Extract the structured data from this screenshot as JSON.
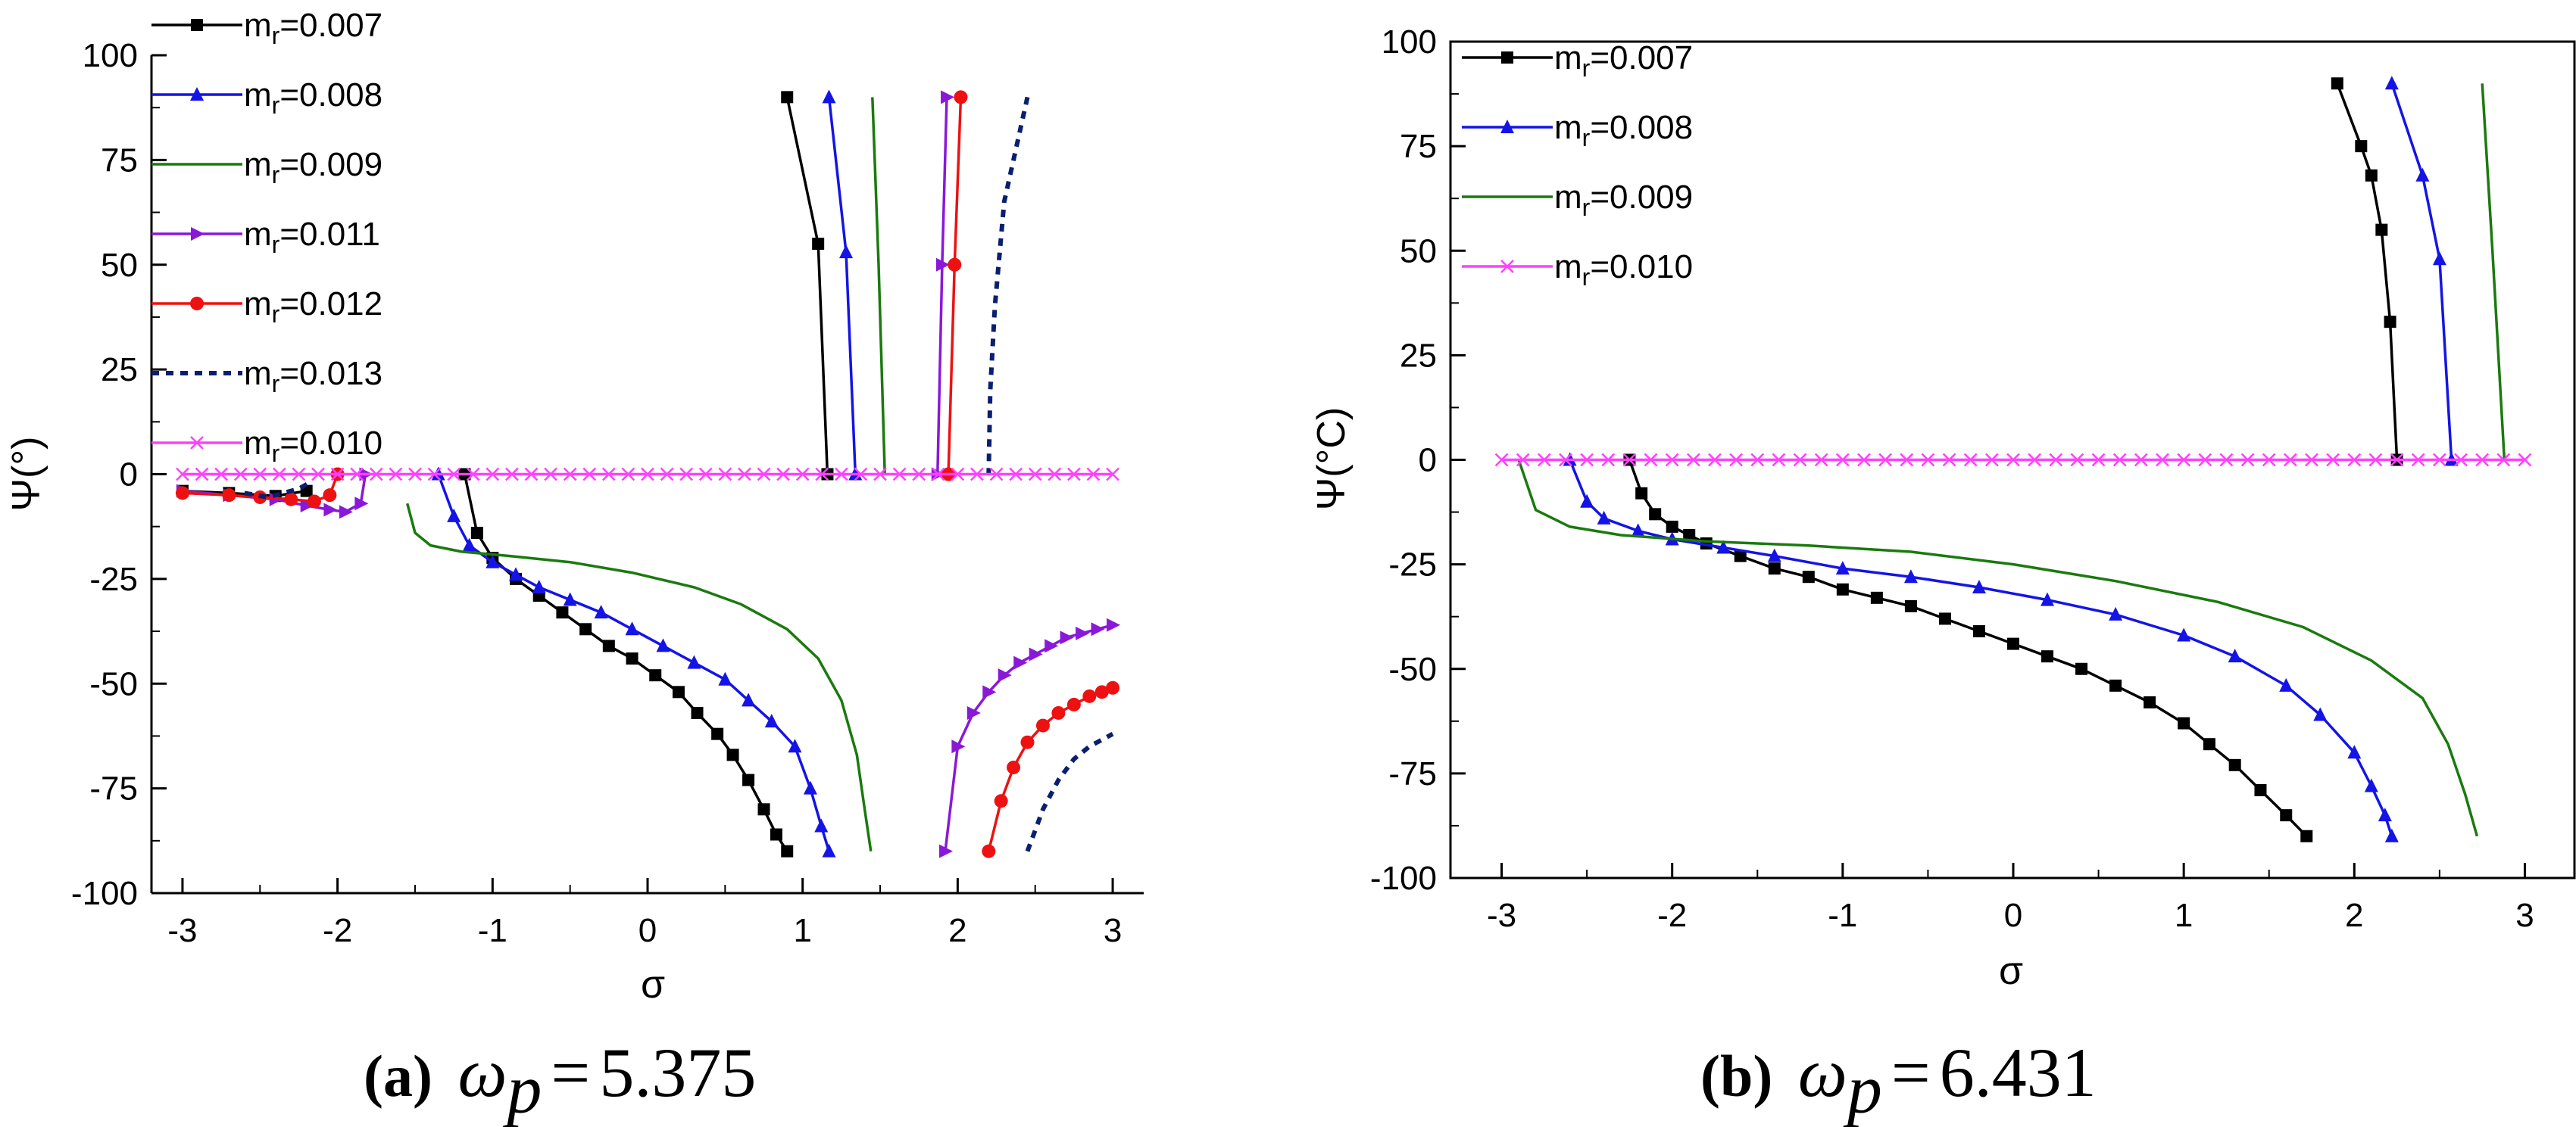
{
  "chart_data": [
    {
      "type": "line",
      "panel": "a",
      "caption": {
        "label": "(a)",
        "symbol": "ω",
        "subscript": "p",
        "equals": "=",
        "value": "5.375"
      },
      "xlabel": "σ",
      "ylabel": "Ψ(°)",
      "xlim": [
        -3.2,
        3.2
      ],
      "ylim": [
        -100,
        100
      ],
      "xticks": [
        -3,
        -2,
        -1,
        0,
        1,
        2,
        3
      ],
      "yticks": [
        100,
        75,
        50,
        25,
        0,
        -25,
        -50,
        -75,
        -100
      ],
      "legend_position": "top-left",
      "series": [
        {
          "name": "m",
          "sub": "r",
          "value": "=0.007",
          "color": "#000000",
          "marker": "square",
          "dash": "",
          "segments": [
            [
              [
                0.9,
                90
              ],
              [
                1.1,
                55
              ],
              [
                1.16,
                0
              ]
            ],
            [
              [
                -3.0,
                -4
              ],
              [
                -2.7,
                -4.5
              ],
              [
                -2.4,
                -5.2
              ],
              [
                -2.2,
                -4
              ]
            ],
            [
              [
                -1.18,
                0
              ],
              [
                -1.1,
                -14
              ],
              [
                -1.0,
                -20
              ],
              [
                -0.85,
                -25
              ],
              [
                -0.7,
                -29
              ],
              [
                -0.55,
                -33
              ],
              [
                -0.4,
                -37
              ],
              [
                -0.25,
                -41
              ],
              [
                -0.1,
                -44
              ],
              [
                0.05,
                -48
              ],
              [
                0.2,
                -52
              ],
              [
                0.32,
                -57
              ],
              [
                0.45,
                -62
              ],
              [
                0.55,
                -67
              ],
              [
                0.65,
                -73
              ],
              [
                0.75,
                -80
              ],
              [
                0.83,
                -86
              ],
              [
                0.9,
                -90
              ]
            ]
          ]
        },
        {
          "name": "m",
          "sub": "r",
          "value": "=0.008",
          "color": "#1414e6",
          "marker": "triangle",
          "dash": "",
          "segments": [
            [
              [
                1.17,
                90
              ],
              [
                1.28,
                53
              ],
              [
                1.34,
                0
              ]
            ],
            [
              [
                -1.35,
                0
              ],
              [
                -1.25,
                -10
              ],
              [
                -1.15,
                -17
              ],
              [
                -1.0,
                -21
              ],
              [
                -0.85,
                -24
              ],
              [
                -0.7,
                -27
              ],
              [
                -0.5,
                -30
              ],
              [
                -0.3,
                -33
              ],
              [
                -0.1,
                -37
              ],
              [
                0.1,
                -41
              ],
              [
                0.3,
                -45
              ],
              [
                0.5,
                -49
              ],
              [
                0.65,
                -54
              ],
              [
                0.8,
                -59
              ],
              [
                0.95,
                -65
              ],
              [
                1.05,
                -75
              ],
              [
                1.12,
                -84
              ],
              [
                1.17,
                -90
              ]
            ]
          ]
        },
        {
          "name": "m",
          "sub": "r",
          "value": "=0.009",
          "color": "#1a7a0e",
          "marker": "none",
          "dash": "",
          "segments": [
            [
              [
                1.45,
                90
              ],
              [
                1.49,
                50
              ],
              [
                1.53,
                0
              ]
            ],
            [
              [
                -1.55,
                -7
              ],
              [
                -1.5,
                -14
              ],
              [
                -1.4,
                -17
              ],
              [
                -1.2,
                -18.5
              ],
              [
                -0.9,
                -19.5
              ],
              [
                -0.5,
                -21
              ],
              [
                -0.1,
                -23.5
              ],
              [
                0.3,
                -27
              ],
              [
                0.6,
                -31
              ],
              [
                0.9,
                -37
              ],
              [
                1.1,
                -44
              ],
              [
                1.25,
                -54
              ],
              [
                1.35,
                -67
              ],
              [
                1.4,
                -80
              ],
              [
                1.44,
                -90
              ]
            ]
          ]
        },
        {
          "name": "m",
          "sub": "r",
          "value": "=0.011",
          "color": "#8a18d8",
          "marker": "triangle-right",
          "dash": "",
          "segments": [
            [
              [
                1.93,
                90
              ],
              [
                1.9,
                50
              ],
              [
                1.87,
                0
              ]
            ],
            [
              [
                -3.0,
                -4
              ],
              [
                -2.7,
                -5
              ],
              [
                -2.4,
                -6
              ],
              [
                -2.2,
                -7.5
              ],
              [
                -2.05,
                -8.5
              ],
              [
                -1.95,
                -9
              ],
              [
                -1.85,
                -7
              ],
              [
                -1.82,
                0
              ]
            ],
            [
              [
                1.92,
                -90
              ],
              [
                2.0,
                -65
              ],
              [
                2.1,
                -57
              ],
              [
                2.2,
                -52
              ],
              [
                2.3,
                -48
              ],
              [
                2.4,
                -45
              ],
              [
                2.5,
                -43
              ],
              [
                2.6,
                -41
              ],
              [
                2.7,
                -39
              ],
              [
                2.8,
                -38
              ],
              [
                2.9,
                -37
              ],
              [
                3.0,
                -36
              ]
            ]
          ]
        },
        {
          "name": "m",
          "sub": "r",
          "value": "=0.012",
          "color": "#ee1111",
          "marker": "circle",
          "dash": "",
          "segments": [
            [
              [
                2.02,
                90
              ],
              [
                1.98,
                50
              ],
              [
                1.94,
                0
              ]
            ],
            [
              [
                -3.0,
                -4.5
              ],
              [
                -2.7,
                -5
              ],
              [
                -2.5,
                -5.5
              ],
              [
                -2.3,
                -6
              ],
              [
                -2.15,
                -6.5
              ],
              [
                -2.05,
                -5
              ],
              [
                -2.0,
                0
              ]
            ],
            [
              [
                2.2,
                -90
              ],
              [
                2.28,
                -78
              ],
              [
                2.36,
                -70
              ],
              [
                2.45,
                -64
              ],
              [
                2.55,
                -60
              ],
              [
                2.65,
                -57
              ],
              [
                2.75,
                -55
              ],
              [
                2.85,
                -53
              ],
              [
                2.93,
                -52
              ],
              [
                3.0,
                -51
              ]
            ]
          ]
        },
        {
          "name": "m",
          "sub": "r",
          "value": "=0.013",
          "color": "#0a1f70",
          "marker": "none",
          "dash": "10,9",
          "segments": [
            [
              [
                2.45,
                90
              ],
              [
                2.3,
                65
              ],
              [
                2.24,
                40
              ],
              [
                2.21,
                20
              ],
              [
                2.2,
                0
              ]
            ],
            [
              [
                -2.6,
                -4.5
              ],
              [
                -2.45,
                -5.5
              ],
              [
                -2.35,
                -4.5
              ],
              [
                -2.25,
                -3.5
              ],
              [
                -2.18,
                -2
              ]
            ],
            [
              [
                2.45,
                -90
              ],
              [
                2.55,
                -80
              ],
              [
                2.65,
                -73
              ],
              [
                2.75,
                -68
              ],
              [
                2.85,
                -65
              ],
              [
                2.95,
                -63
              ],
              [
                3.0,
                -62
              ]
            ]
          ]
        },
        {
          "name": "m",
          "sub": "r",
          "value": "=0.010",
          "color": "#ff40ff",
          "marker": "x",
          "dash": "",
          "segments": [
            [
              [
                -3.0,
                0
              ],
              [
                3.0,
                0
              ]
            ]
          ]
        }
      ]
    },
    {
      "type": "line",
      "panel": "b",
      "caption": {
        "label": "(b)",
        "symbol": "ω",
        "subscript": "p",
        "equals": "=",
        "value": "6.431"
      },
      "xlabel": "σ",
      "ylabel": "Ψ(°C)",
      "xlim": [
        -3.3,
        3.3
      ],
      "ylim": [
        -100,
        100
      ],
      "xticks": [
        -3,
        -2,
        -1,
        0,
        1,
        2,
        3
      ],
      "yticks": [
        100,
        75,
        50,
        25,
        0,
        -25,
        -50,
        -75,
        -100
      ],
      "legend_position": "top-left",
      "series": [
        {
          "name": "m",
          "sub": "r",
          "value": "=0.007",
          "color": "#000000",
          "marker": "square",
          "dash": "",
          "segments": [
            [
              [
                1.9,
                90
              ],
              [
                2.04,
                75
              ],
              [
                2.1,
                68
              ],
              [
                2.16,
                55
              ],
              [
                2.21,
                33
              ],
              [
                2.25,
                0
              ]
            ],
            [
              [
                -2.25,
                0
              ],
              [
                -2.18,
                -8
              ],
              [
                -2.1,
                -13
              ],
              [
                -2.0,
                -16
              ],
              [
                -1.9,
                -18
              ],
              [
                -1.8,
                -20
              ],
              [
                -1.6,
                -23
              ],
              [
                -1.4,
                -26
              ],
              [
                -1.2,
                -28
              ],
              [
                -1.0,
                -31
              ],
              [
                -0.8,
                -33
              ],
              [
                -0.6,
                -35
              ],
              [
                -0.4,
                -38
              ],
              [
                -0.2,
                -41
              ],
              [
                0.0,
                -44
              ],
              [
                0.2,
                -47
              ],
              [
                0.4,
                -50
              ],
              [
                0.6,
                -54
              ],
              [
                0.8,
                -58
              ],
              [
                1.0,
                -63
              ],
              [
                1.15,
                -68
              ],
              [
                1.3,
                -73
              ],
              [
                1.45,
                -79
              ],
              [
                1.6,
                -85
              ],
              [
                1.72,
                -90
              ]
            ]
          ]
        },
        {
          "name": "m",
          "sub": "r",
          "value": "=0.008",
          "color": "#1414e6",
          "marker": "triangle",
          "dash": "",
          "segments": [
            [
              [
                2.22,
                90
              ],
              [
                2.4,
                68
              ],
              [
                2.5,
                48
              ],
              [
                2.57,
                0
              ]
            ],
            [
              [
                -2.6,
                0
              ],
              [
                -2.5,
                -10
              ],
              [
                -2.4,
                -14
              ],
              [
                -2.2,
                -17
              ],
              [
                -2.0,
                -19
              ],
              [
                -1.7,
                -21
              ],
              [
                -1.4,
                -23
              ],
              [
                -1.0,
                -26
              ],
              [
                -0.6,
                -28
              ],
              [
                -0.2,
                -30.5
              ],
              [
                0.2,
                -33.5
              ],
              [
                0.6,
                -37
              ],
              [
                1.0,
                -42
              ],
              [
                1.3,
                -47
              ],
              [
                1.6,
                -54
              ],
              [
                1.8,
                -61
              ],
              [
                2.0,
                -70
              ],
              [
                2.1,
                -78
              ],
              [
                2.18,
                -85
              ],
              [
                2.22,
                -90
              ]
            ]
          ]
        },
        {
          "name": "m",
          "sub": "r",
          "value": "=0.009",
          "color": "#1a7a0e",
          "marker": "none",
          "dash": "",
          "segments": [
            [
              [
                2.75,
                90
              ],
              [
                2.81,
                50
              ],
              [
                2.88,
                0
              ]
            ],
            [
              [
                -2.9,
                0
              ],
              [
                -2.8,
                -12
              ],
              [
                -2.6,
                -16
              ],
              [
                -2.3,
                -18
              ],
              [
                -1.8,
                -19.5
              ],
              [
                -1.2,
                -20.5
              ],
              [
                -0.6,
                -22
              ],
              [
                0.0,
                -25
              ],
              [
                0.6,
                -29
              ],
              [
                1.2,
                -34
              ],
              [
                1.7,
                -40
              ],
              [
                2.1,
                -48
              ],
              [
                2.4,
                -57
              ],
              [
                2.55,
                -68
              ],
              [
                2.65,
                -80
              ],
              [
                2.72,
                -90
              ]
            ]
          ]
        },
        {
          "name": "m",
          "sub": "r",
          "value": "=0.010",
          "color": "#ff40ff",
          "marker": "x",
          "dash": "",
          "segments": [
            [
              [
                -3.0,
                0
              ],
              [
                3.0,
                0
              ]
            ]
          ]
        }
      ]
    }
  ]
}
